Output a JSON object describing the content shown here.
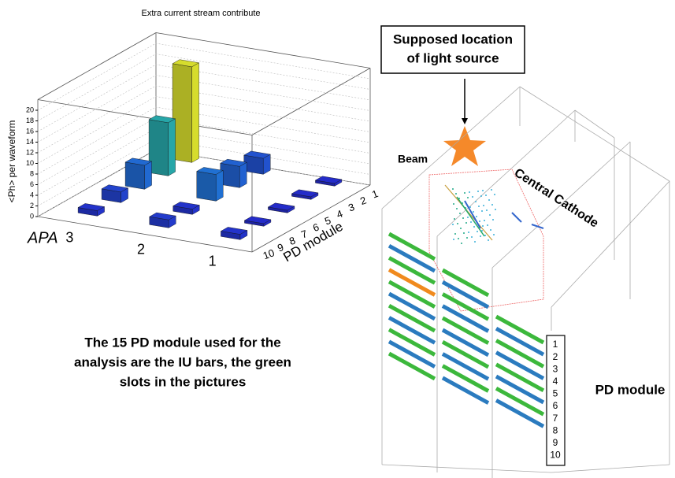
{
  "chart_data": {
    "type": "lego3d",
    "title": "Extra current stream contribute",
    "xlabel": "APA",
    "ylabel": "PD module",
    "zlabel": "<Ph> per waveform",
    "x_categories": [
      "3",
      "2",
      "1"
    ],
    "y_categories": [
      "1",
      "2",
      "3",
      "4",
      "5",
      "6",
      "7",
      "8",
      "9",
      "10"
    ],
    "values": [
      [
        18,
        null,
        10,
        null,
        4.5,
        null,
        2,
        null,
        1,
        null
      ],
      [
        3,
        null,
        4,
        null,
        5,
        null,
        1,
        null,
        1.5,
        null
      ],
      [
        0.5,
        null,
        0.5,
        null,
        0.5,
        null,
        0.5,
        null,
        1,
        null
      ]
    ],
    "zlim": [
      0,
      22
    ],
    "zticks": [
      0,
      2,
      4,
      6,
      8,
      10,
      12,
      14,
      16,
      18,
      20
    ],
    "grid": true,
    "colormap": "kbird"
  },
  "caption": [
    "The 15 PD module used for the",
    "analysis are the IU bars, the green",
    "slots in the pictures"
  ],
  "diagram": {
    "source_label": [
      "Supposed location",
      "of light source"
    ],
    "beam_label": "Beam",
    "cathode_label": "Central Cathode",
    "pd_label": "PD module",
    "pd_numbers": [
      "1",
      "2",
      "3",
      "4",
      "5",
      "6",
      "7",
      "8",
      "9",
      "10"
    ]
  }
}
